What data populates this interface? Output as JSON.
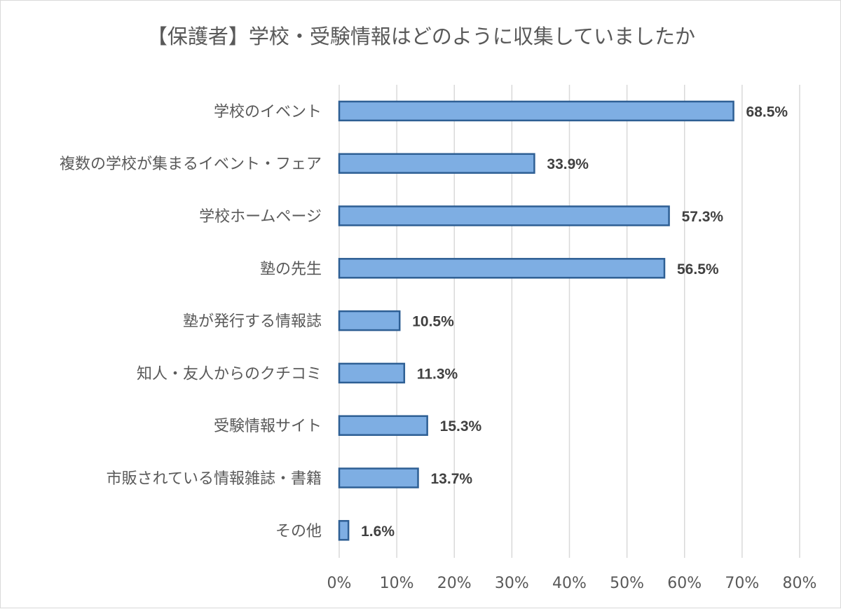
{
  "chart_data": {
    "type": "bar",
    "orientation": "horizontal",
    "title": "【保護者】学校・受験情報はどのように収集していましたか",
    "categories": [
      "学校のイベント",
      "複数の学校が集まるイベント・フェア",
      "学校ホームページ",
      "塾の先生",
      "塾が発行する情報誌",
      "知人・友人からのクチコミ",
      "受験情報サイト",
      "市販されている情報雑誌・書籍",
      "その他"
    ],
    "values": [
      68.5,
      33.9,
      57.3,
      56.5,
      10.5,
      11.3,
      15.3,
      13.7,
      1.6
    ],
    "data_labels": [
      "68.5%",
      "33.9%",
      "57.3%",
      "56.5%",
      "10.5%",
      "11.3%",
      "15.3%",
      "13.7%",
      "1.6%"
    ],
    "xlim": [
      0,
      80
    ],
    "xticks": [
      0,
      10,
      20,
      30,
      40,
      50,
      60,
      70,
      80
    ],
    "xtick_labels": [
      "0%",
      "10%",
      "20%",
      "30%",
      "40%",
      "50%",
      "60%",
      "70%",
      "80%"
    ],
    "xlabel": "",
    "ylabel": "",
    "grid": "vertical",
    "legend": "none",
    "colors": {
      "bar_fill": "#7eaee3",
      "bar_stroke": "#2e5f94",
      "grid": "#d9d9d9",
      "text": "#595959",
      "data_label": "#404040"
    }
  }
}
